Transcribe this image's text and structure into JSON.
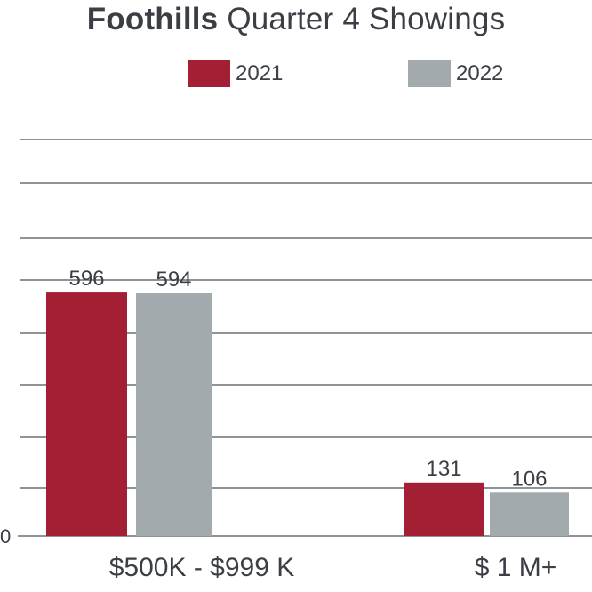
{
  "title": {
    "bold": "Foothills",
    "rest": "Quarter 4 Showings"
  },
  "colors": {
    "2021": "#a31f33",
    "2022": "#a3aaae",
    "grid": "#6d6f72",
    "text": "#3b3f45"
  },
  "chart_data": {
    "type": "bar",
    "title": "Foothills Quarter 4 Showings",
    "categories": [
      "$500K - $999 K",
      "$ 1 M+"
    ],
    "series": [
      {
        "name": "2021",
        "values": [
          596,
          131
        ]
      },
      {
        "name": "2022",
        "values": [
          594,
          106
        ]
      }
    ],
    "data_labels": [
      [
        "596",
        "594"
      ],
      [
        "131",
        "106"
      ]
    ],
    "yticks": [
      "0"
    ],
    "ylim": [
      0,
      1100
    ],
    "grid": true,
    "legend": "top-center"
  }
}
